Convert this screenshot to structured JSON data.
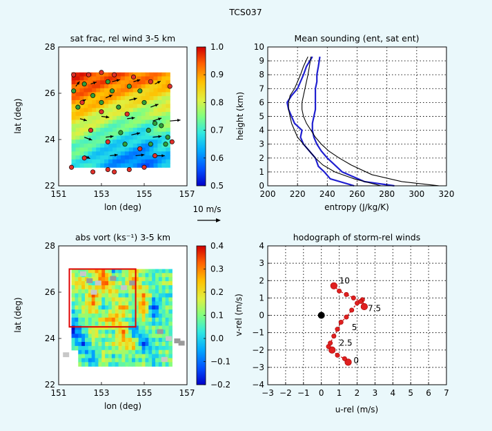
{
  "figure_title": "TCS037",
  "scale_arrow_label": "10 m/s",
  "chart_data": [
    {
      "id": "p1",
      "type": "heatmap",
      "title": "sat frac, rel wind 3-5 km",
      "xlabel": "lon (deg)",
      "ylabel": "lat (deg)",
      "xlim": [
        151,
        157
      ],
      "ylim": [
        22,
        28
      ],
      "xticks": [
        "151",
        "153",
        "155",
        "157"
      ],
      "yticks": [
        "22",
        "24",
        "26",
        "28"
      ],
      "colorbar": {
        "range": [
          0.5,
          1.0
        ],
        "ticks": [
          "0.5",
          "0.6",
          "0.7",
          "0.8",
          "0.9",
          "1.0"
        ]
      },
      "domain": {
        "lon": [
          151.6,
          156.2
        ],
        "lat": [
          22.8,
          26.9
        ]
      },
      "field": [
        [
          0.96,
          0.95,
          0.94,
          0.93,
          0.92,
          0.9
        ],
        [
          0.92,
          0.9,
          0.88,
          0.86,
          0.84,
          0.82
        ],
        [
          0.86,
          0.83,
          0.8,
          0.78,
          0.77,
          0.79
        ],
        [
          0.8,
          0.76,
          0.73,
          0.72,
          0.7,
          0.74
        ],
        [
          0.74,
          0.7,
          0.68,
          0.66,
          0.63,
          0.68
        ],
        [
          0.7,
          0.66,
          0.62,
          0.6,
          0.58,
          0.64
        ]
      ],
      "markers_green": [
        [
          151.7,
          26.1
        ],
        [
          151.9,
          25.4
        ],
        [
          152.2,
          26.4
        ],
        [
          152.6,
          25.9
        ],
        [
          153.0,
          25.6
        ],
        [
          153.3,
          26.5
        ],
        [
          153.5,
          26.1
        ],
        [
          153.8,
          25.4
        ],
        [
          154.3,
          26.3
        ],
        [
          154.8,
          26.1
        ],
        [
          155.0,
          25.6
        ],
        [
          155.2,
          24.4
        ],
        [
          155.5,
          24.7
        ],
        [
          155.8,
          24.6
        ],
        [
          156.1,
          24.1
        ],
        [
          153.9,
          24.3
        ],
        [
          154.1,
          23.8
        ],
        [
          155.3,
          23.8
        ],
        [
          156.0,
          23.8
        ]
      ],
      "markers_red": [
        [
          151.7,
          26.8
        ],
        [
          152.4,
          26.8
        ],
        [
          153.0,
          26.9
        ],
        [
          153.6,
          26.8
        ],
        [
          154.5,
          26.7
        ],
        [
          155.3,
          26.5
        ],
        [
          152.1,
          25.6
        ],
        [
          153.0,
          25.2
        ],
        [
          154.2,
          25.1
        ],
        [
          152.5,
          24.4
        ],
        [
          153.3,
          23.9
        ],
        [
          154.8,
          23.6
        ],
        [
          152.2,
          23.2
        ],
        [
          153.3,
          22.7
        ],
        [
          154.3,
          22.7
        ],
        [
          155.0,
          22.8
        ],
        [
          153.6,
          22.6
        ],
        [
          152.6,
          22.6
        ],
        [
          151.6,
          22.8
        ],
        [
          155.5,
          23.3
        ],
        [
          156.2,
          26.3
        ],
        [
          156.3,
          23.9
        ]
      ],
      "wind_vectors": [
        [
          151.8,
          26.3,
          0.4,
          0.5
        ],
        [
          152.5,
          26.4,
          0.6,
          0.2
        ],
        [
          153.5,
          26.5,
          0.8,
          0.2
        ],
        [
          154.5,
          26.5,
          0.7,
          0.2
        ],
        [
          155.5,
          26.4,
          0.6,
          0.3
        ],
        [
          152.0,
          25.6,
          0.6,
          0.3
        ],
        [
          153.2,
          25.8,
          0.7,
          0.3
        ],
        [
          154.3,
          25.7,
          0.8,
          0.2
        ],
        [
          155.3,
          25.4,
          0.8,
          0.3
        ],
        [
          152.0,
          24.9,
          0.7,
          -0.2
        ],
        [
          153.0,
          25.0,
          0.8,
          -0.1
        ],
        [
          154.2,
          24.9,
          0.8,
          0.1
        ],
        [
          155.4,
          24.8,
          0.9,
          0.3
        ],
        [
          156.2,
          24.8,
          1.1,
          0.1
        ],
        [
          152.2,
          24.1,
          0.8,
          -0.3
        ],
        [
          153.2,
          24.1,
          0.8,
          0.1
        ],
        [
          154.4,
          24.2,
          0.9,
          0.2
        ],
        [
          155.4,
          24.1,
          0.9,
          0.1
        ],
        [
          152.2,
          23.3,
          0.6,
          -0.3
        ],
        [
          153.4,
          23.3,
          0.8,
          0.1
        ],
        [
          154.6,
          23.3,
          0.9,
          0.1
        ],
        [
          155.6,
          23.3,
          0.8,
          0.0
        ]
      ]
    },
    {
      "id": "p2",
      "type": "line",
      "title": "Mean sounding (ent, sat ent)",
      "xlabel": "entropy (J/kg/K)",
      "ylabel": "height (km)",
      "xlim": [
        200,
        320
      ],
      "ylim": [
        0,
        10
      ],
      "xticks": [
        "200",
        "220",
        "240",
        "260",
        "280",
        "300",
        "320"
      ],
      "yticks": [
        "0",
        "1",
        "2",
        "3",
        "4",
        "5",
        "6",
        "7",
        "8",
        "9",
        "10"
      ],
      "series": [
        {
          "name": "blue entropy",
          "color": "#1f1fd0",
          "x": [
            258,
            242,
            238,
            234,
            232,
            228,
            224,
            222,
            223,
            218,
            216,
            214,
            213,
            216,
            220,
            222,
            224,
            226,
            230
          ],
          "y": [
            0,
            0.5,
            1,
            1.4,
            2,
            2.5,
            3,
            3.5,
            4,
            4.5,
            5,
            5.5,
            6,
            6.5,
            7,
            7.5,
            8,
            8.6,
            9.3
          ]
        },
        {
          "name": "blue sat entropy",
          "color": "#1f1fd0",
          "x": [
            285,
            265,
            250,
            245,
            240,
            236,
            233,
            231,
            230,
            230,
            231,
            232,
            232,
            232,
            232,
            233,
            233,
            234,
            235
          ],
          "y": [
            0,
            0.3,
            1,
            1.5,
            2,
            2.5,
            3,
            3.5,
            4,
            4.5,
            5,
            5.5,
            6,
            6.5,
            7,
            7.5,
            8,
            8.6,
            9.3
          ]
        },
        {
          "name": "black entropy",
          "color": "#000000",
          "x": [
            276,
            258,
            245,
            237,
            232,
            228,
            224,
            220,
            218,
            216,
            215,
            214,
            214,
            215,
            218,
            220,
            222,
            224,
            227
          ],
          "y": [
            0,
            0.5,
            1,
            1.5,
            2,
            2.5,
            3,
            3.5,
            4,
            4.5,
            5,
            5.5,
            6,
            6.5,
            7,
            7.5,
            8,
            8.6,
            9.3
          ]
        },
        {
          "name": "black sat entropy",
          "color": "#000000",
          "x": [
            315,
            290,
            270,
            256,
            248,
            241,
            236,
            232,
            229,
            226,
            224,
            223,
            223,
            224,
            225,
            226,
            227,
            228,
            229
          ],
          "y": [
            0,
            0.3,
            0.8,
            1.5,
            2,
            2.5,
            3,
            3.5,
            4,
            4.5,
            5,
            5.5,
            6,
            6.5,
            7,
            7.5,
            8,
            8.6,
            9.3
          ]
        }
      ]
    },
    {
      "id": "p3",
      "type": "heatmap",
      "title": "abs vort (ks⁻¹) 3-5 km",
      "xlabel": "lon (deg)",
      "ylabel": "lat (deg)",
      "xlim": [
        151,
        157
      ],
      "ylim": [
        22,
        28
      ],
      "xticks": [
        "151",
        "153",
        "155",
        "157"
      ],
      "yticks": [
        "22",
        "24",
        "26",
        "28"
      ],
      "colorbar": {
        "range": [
          -0.2,
          0.4
        ],
        "ticks": [
          "−0.2",
          "−0.1",
          "0.0",
          "0.1",
          "0.2",
          "0.3",
          "0.4"
        ]
      },
      "box": {
        "lon": [
          151.5,
          154.6
        ],
        "lat": [
          24.5,
          27.0
        ]
      },
      "domain": {
        "lon": [
          151.6,
          156.3
        ],
        "lat": [
          22.8,
          27.0
        ]
      },
      "field": [
        [
          0.12,
          0.02,
          0.2,
          0.3,
          0.0,
          0.1,
          0.2,
          0.1,
          0.05,
          0.08
        ],
        [
          0.18,
          0.25,
          0.05,
          0.35,
          0.15,
          0.08,
          0.3,
          0.1,
          0.05,
          0.12
        ],
        [
          0.1,
          0.05,
          0.3,
          0.1,
          0.2,
          0.05,
          0.1,
          0.25,
          0.05,
          0.02
        ],
        [
          0.05,
          0.15,
          0.25,
          0.0,
          0.1,
          0.28,
          0.05,
          0.3,
          -0.15,
          0.1
        ],
        [
          -0.05,
          0.1,
          0.05,
          0.2,
          0.3,
          0.1,
          0.05,
          0.15,
          0.0,
          0.05
        ],
        [
          -0.18,
          0.0,
          0.2,
          0.1,
          0.05,
          0.3,
          -0.1,
          0.05,
          0.1,
          0.08
        ],
        [
          0.05,
          -0.1,
          0.1,
          0.05,
          0.15,
          0.2,
          0.25,
          -0.15,
          0.05,
          0.05
        ],
        [
          0.1,
          0.05,
          -0.05,
          0.15,
          0.05,
          0.1,
          0.05,
          0.1,
          0.0,
          0.1
        ]
      ]
    },
    {
      "id": "p4",
      "type": "scatter",
      "title": "hodograph of storm-rel winds",
      "xlabel": "u-rel (m/s)",
      "ylabel": "v-rel (m/s)",
      "xlim": [
        -3,
        7
      ],
      "ylim": [
        -4,
        4
      ],
      "xticks": [
        "−3",
        "−2",
        "−1",
        "0",
        "1",
        "2",
        "3",
        "4",
        "5",
        "6",
        "7"
      ],
      "yticks": [
        "−4",
        "−3",
        "−2",
        "−1",
        "0",
        "1",
        "2",
        "3",
        "4"
      ],
      "u": [
        1.5,
        1.3,
        0.9,
        0.6,
        0.4,
        0.5,
        0.7,
        0.9,
        1.1,
        1.4,
        1.7,
        2.0,
        2.3,
        2.4,
        2.2,
        1.8,
        1.4,
        1.0,
        0.7
      ],
      "v": [
        -2.7,
        -2.5,
        -2.3,
        -2.0,
        -1.8,
        -1.6,
        -1.2,
        -0.8,
        -0.4,
        -0.1,
        0.3,
        0.7,
        0.9,
        0.5,
        0.8,
        1.0,
        1.2,
        1.4,
        1.7
      ],
      "big_marker_index": [
        0,
        3,
        13,
        18
      ],
      "point_labels": [
        {
          "text": "0",
          "u": 1.8,
          "v": -2.6
        },
        {
          "text": "2.5",
          "u": 1.0,
          "v": -1.6
        },
        {
          "text": "5",
          "u": 1.7,
          "v": -0.7
        },
        {
          "text": "7.5",
          "u": 2.6,
          "v": 0.4
        },
        {
          "text": "10",
          "u": 1.0,
          "v": 2.0
        }
      ],
      "origin_marker": {
        "u": 0,
        "v": 0
      }
    }
  ]
}
